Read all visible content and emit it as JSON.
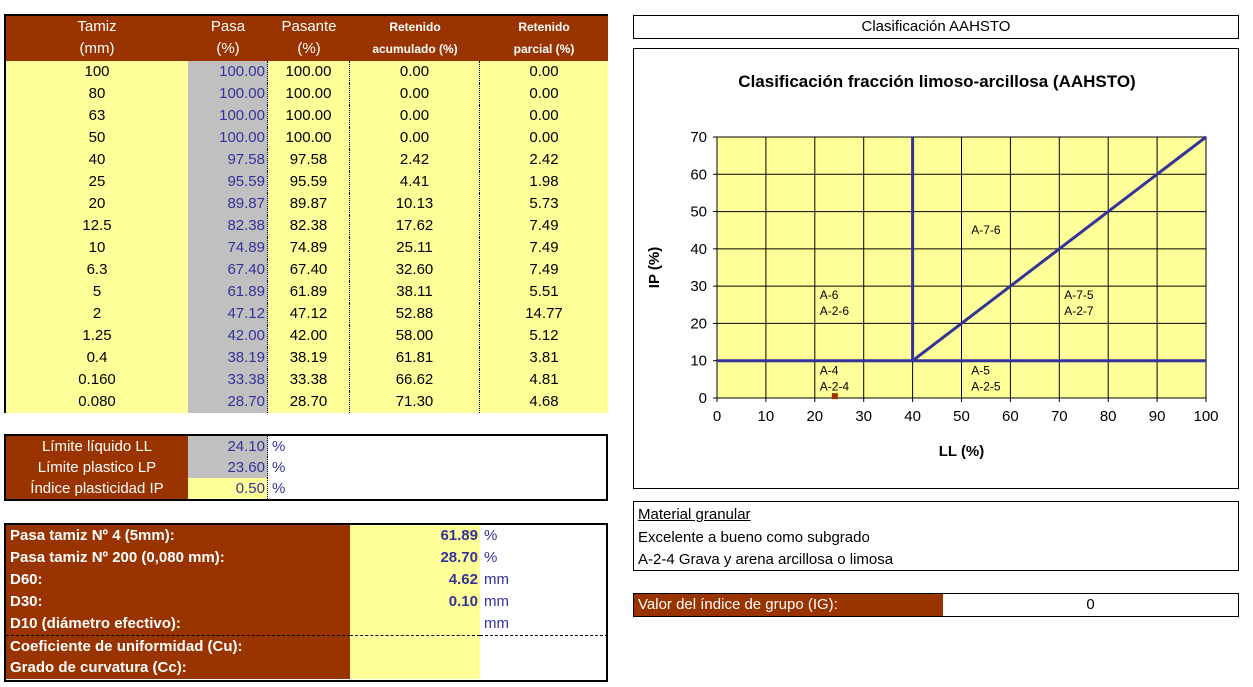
{
  "sieve_table": {
    "headers": [
      [
        "Tamiz",
        "(mm)"
      ],
      [
        "Pasa",
        "(%)"
      ],
      [
        "Pasante",
        "(%)"
      ],
      [
        "Retenido",
        "acumulado (%)"
      ],
      [
        "Retenido",
        "parcial (%)"
      ]
    ],
    "rows": [
      [
        "100",
        "100.00",
        "100.00",
        "0.00",
        "0.00"
      ],
      [
        "80",
        "100.00",
        "100.00",
        "0.00",
        "0.00"
      ],
      [
        "63",
        "100.00",
        "100.00",
        "0.00",
        "0.00"
      ],
      [
        "50",
        "100.00",
        "100.00",
        "0.00",
        "0.00"
      ],
      [
        "40",
        "97.58",
        "97.58",
        "2.42",
        "2.42"
      ],
      [
        "25",
        "95.59",
        "95.59",
        "4.41",
        "1.98"
      ],
      [
        "20",
        "89.87",
        "89.87",
        "10.13",
        "5.73"
      ],
      [
        "12.5",
        "82.38",
        "82.38",
        "17.62",
        "7.49"
      ],
      [
        "10",
        "74.89",
        "74.89",
        "25.11",
        "7.49"
      ],
      [
        "6.3",
        "67.40",
        "67.40",
        "32.60",
        "7.49"
      ],
      [
        "5",
        "61.89",
        "61.89",
        "38.11",
        "5.51"
      ],
      [
        "2",
        "47.12",
        "47.12",
        "52.88",
        "14.77"
      ],
      [
        "1.25",
        "42.00",
        "42.00",
        "58.00",
        "5.12"
      ],
      [
        "0.4",
        "38.19",
        "38.19",
        "61.81",
        "3.81"
      ],
      [
        "0.160",
        "33.38",
        "33.38",
        "66.62",
        "4.81"
      ],
      [
        "0.080",
        "28.70",
        "28.70",
        "71.30",
        "4.68"
      ]
    ]
  },
  "limits": {
    "rows": [
      {
        "label": "Límite líquido LL",
        "value": "24.10",
        "unit": "%"
      },
      {
        "label": "Límite plastico LP",
        "value": "23.60",
        "unit": "%"
      },
      {
        "label": "Índice plasticidad IP",
        "value": "0.50",
        "unit": "%"
      }
    ]
  },
  "granulometry": {
    "rows": [
      {
        "label": "Pasa tamiz Nº 4 (5mm):",
        "value": "61.89",
        "unit": "%"
      },
      {
        "label": "Pasa tamiz Nº 200 (0,080 mm):",
        "value": "28.70",
        "unit": "%"
      },
      {
        "label": "D60:",
        "value": "4.62",
        "unit": "mm"
      },
      {
        "label": "D30:",
        "value": "0.10",
        "unit": "mm"
      },
      {
        "label": "D10 (diámetro efectivo):",
        "unit": "mm"
      },
      {
        "label": "Coeficiente de uniformidad (Cu):"
      },
      {
        "label": "Grado de curvatura (Cc):"
      }
    ]
  },
  "classification_header": "Clasificación AAHSTO",
  "chart": {
    "title": "Clasificación fracción limoso-arcillosa (AAHSTO)",
    "x_label": "LL (%)",
    "y_label": "IP (%)",
    "xlim": [
      0,
      100
    ],
    "ylim": [
      0,
      70
    ],
    "xticks": [
      0,
      10,
      20,
      30,
      40,
      50,
      60,
      70,
      80,
      90,
      100
    ],
    "yticks": [
      0,
      10,
      20,
      30,
      40,
      50,
      60,
      70
    ],
    "grid": true,
    "line_color": "#333399",
    "lines": [
      {
        "x": [
          0,
          100
        ],
        "y": [
          10,
          10
        ]
      },
      {
        "x": [
          40,
          40
        ],
        "y": [
          10,
          70
        ]
      },
      {
        "x": [
          40,
          100
        ],
        "y": [
          10,
          70
        ]
      }
    ],
    "point": {
      "x": 24.1,
      "y": 0.5,
      "color": "#993300"
    },
    "regions": [
      {
        "lines": [
          "A-7-6"
        ]
      },
      {
        "lines": [
          "A-6",
          "A-2-6"
        ]
      },
      {
        "lines": [
          "A-7-5",
          "A-2-7"
        ]
      },
      {
        "lines": [
          "A-4",
          "A-2-4"
        ]
      },
      {
        "lines": [
          "A-5",
          "A-2-5"
        ]
      }
    ]
  },
  "result": {
    "title": "Material granular",
    "rating": "Excelente a bueno como subgrado",
    "classification": "A-2-4 Grava y arena arcillosa o limosa"
  },
  "group_index": {
    "label": "Valor del índice de grupo (IG):",
    "value": "0"
  }
}
